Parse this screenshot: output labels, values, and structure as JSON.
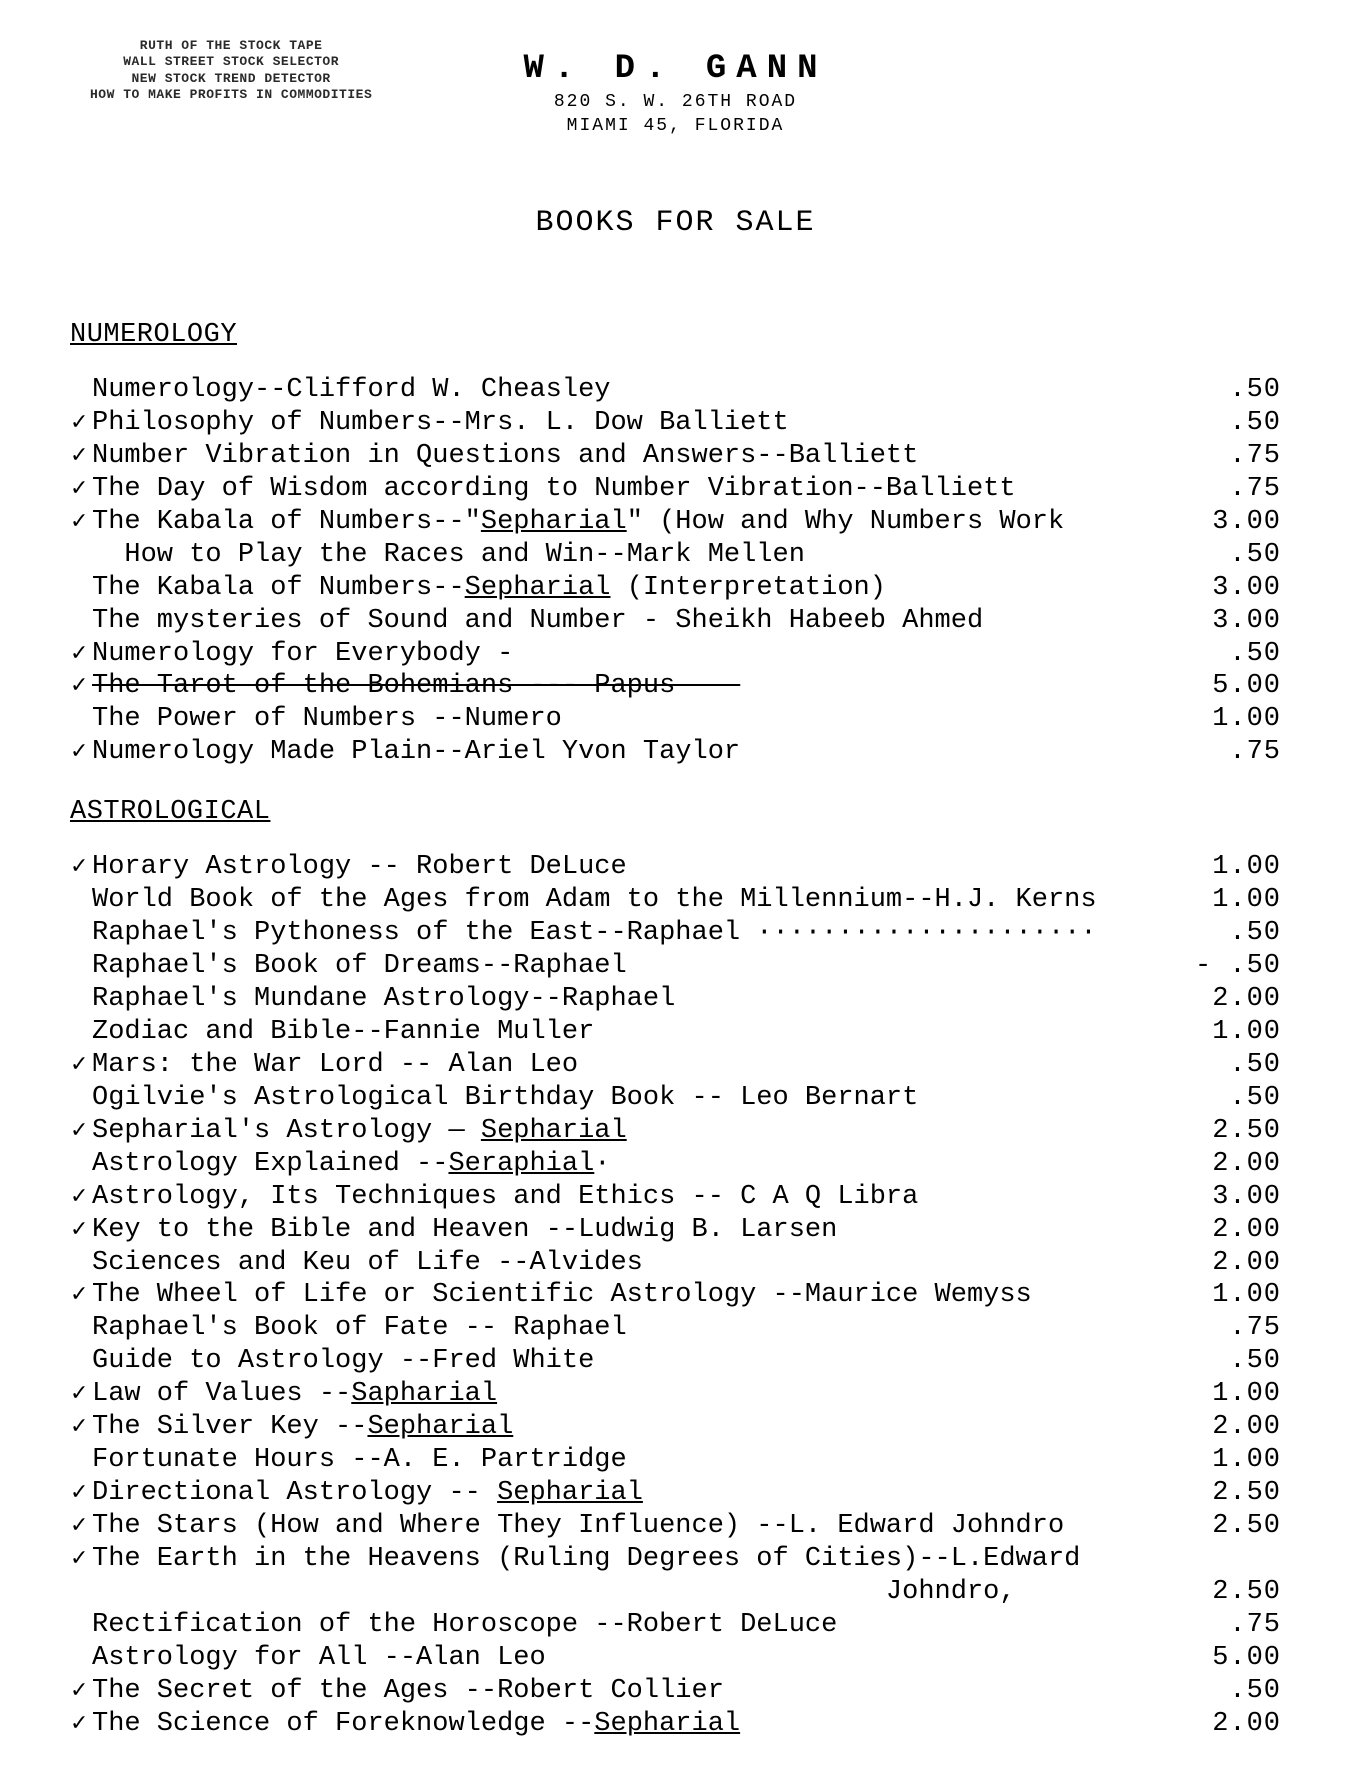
{
  "topLeft": {
    "l1": "RUTH OF THE STOCK TAPE",
    "l2": "WALL STREET STOCK SELECTOR",
    "l3": "NEW STOCK TREND DETECTOR",
    "l4": "HOW TO MAKE PROFITS IN COMMODITIES"
  },
  "header": {
    "name": "W. D. GANN",
    "addr1": "820 S. W. 26TH ROAD",
    "addr2": "MIAMI 45, FLORIDA"
  },
  "docTitle": "BOOKS FOR SALE",
  "sections": [
    {
      "heading": "NUMEROLOGY",
      "items": [
        {
          "chk": "",
          "title": "Numerology--Clifford W. Cheasley",
          "price": ".50"
        },
        {
          "chk": "✓",
          "title": "Philosophy of Numbers--Mrs. L. Dow Balliett",
          "price": ".50"
        },
        {
          "chk": "✓",
          "title": "Number Vibration in Questions and Answers--Balliett",
          "price": ".75"
        },
        {
          "chk": "✓",
          "title": "The Day of Wisdom according to Number Vibration--Balliett",
          "price": ".75"
        },
        {
          "chk": "✓",
          "titlePre": "The Kabala of Numbers--\"",
          "uline": "Sepharial",
          "titlePost": "\" (How and Why Numbers Work",
          "price": "3.00"
        },
        {
          "chk": "",
          "title": "How to Play the Races and Win--Mark Mellen",
          "price": ".50",
          "indent": true
        },
        {
          "chk": "",
          "titlePre": "The Kabala of Numbers--",
          "uline": "Sepharial",
          "titlePost": " (Interpretation)",
          "price": "3.00"
        },
        {
          "chk": "",
          "title": "The mysteries of Sound and Number - Sheikh Habeeb Ahmed",
          "price": "3.00"
        },
        {
          "chk": "✓",
          "title": "Numerology for Everybody -",
          "price": ".50"
        },
        {
          "chk": "✓",
          "strike": "The Tarot of the Bohemians --- Papus ———",
          "price": "5.00"
        },
        {
          "chk": "",
          "title": "The Power of Numbers --Numero",
          "price": "1.00"
        },
        {
          "chk": "✓",
          "title": "Numerology Made Plain--Ariel Yvon Taylor",
          "price": ".75"
        }
      ]
    },
    {
      "heading": "ASTROLOGICAL",
      "items": [
        {
          "chk": "✓",
          "title": "Horary Astrology -- Robert DeLuce",
          "price": "1.00"
        },
        {
          "chk": "",
          "title": "World Book of the Ages from Adam to the Millennium--H.J. Kerns",
          "price": "1.00"
        },
        {
          "chk": "",
          "title": "Raphael's Pythoness of the East--Raphael ·····················",
          "price": ".50"
        },
        {
          "chk": "",
          "title": "Raphael's Book of Dreams--Raphael",
          "price": "- .50"
        },
        {
          "chk": "",
          "title": "Raphael's Mundane Astrology--Raphael",
          "price": "2.00"
        },
        {
          "chk": "",
          "title": "Zodiac and Bible--Fannie Muller",
          "price": "1.00"
        },
        {
          "chk": "✓",
          "title": "Mars: the War Lord -- Alan Leo",
          "price": ".50"
        },
        {
          "chk": "",
          "title": "Ogilvie's Astrological Birthday Book -- Leo Bernart",
          "price": ".50"
        },
        {
          "chk": "✓",
          "titlePre": "Sepharial's Astrology — ",
          "uline": "Sepharial",
          "titlePost": "",
          "price": "2.50"
        },
        {
          "chk": "",
          "titlePre": "Astrology Explained --",
          "uline": "Seraphial",
          "titlePost": "·",
          "price": "2.00"
        },
        {
          "chk": "✓",
          "title": "Astrology, Its Techniques and Ethics -- C A Q Libra",
          "price": "3.00"
        },
        {
          "chk": "✓",
          "title": "Key to the Bible and Heaven --Ludwig B. Larsen",
          "price": "2.00"
        },
        {
          "chk": "",
          "title": "Sciences and Keu of Life --Alvides",
          "price": "2.00"
        },
        {
          "chk": "✓",
          "title": "The Wheel of Life or Scientific Astrology --Maurice Wemyss",
          "price": "1.00"
        },
        {
          "chk": "",
          "title": "Raphael's Book of Fate -- Raphael",
          "price": ".75"
        },
        {
          "chk": "",
          "title": "Guide to Astrology --Fred White",
          "price": ".50"
        },
        {
          "chk": "✓",
          "titlePre": "Law of Values --",
          "uline": "Sapharial",
          "titlePost": "",
          "price": "1.00"
        },
        {
          "chk": "✓",
          "titlePre": "The Silver Key --",
          "uline": "Sepharial",
          "titlePost": "",
          "price": "2.00"
        },
        {
          "chk": "",
          "title": "Fortunate Hours --A. E. Partridge",
          "price": "1.00"
        },
        {
          "chk": "✓",
          "titlePre": "Directional Astrology -- ",
          "uline": "Sepharial",
          "titlePost": "",
          "price": "2.50"
        },
        {
          "chk": "✓",
          "title": "The Stars (How and Where They Influence) --L. Edward Johndro",
          "price": "2.50"
        },
        {
          "chk": "✓",
          "title": "The Earth in the Heavens (Ruling Degrees of Cities)--L.Edward",
          "price": ""
        },
        {
          "chk": "",
          "title": "                                                 Johndro,",
          "price": "2.50"
        },
        {
          "chk": "",
          "title": "Rectification of the Horoscope --Robert DeLuce",
          "price": ".75"
        },
        {
          "chk": "",
          "title": "Astrology for All --Alan Leo",
          "price": "5.00"
        },
        {
          "chk": "✓",
          "title": "The Secret of the Ages --Robert Collier",
          "price": ".50"
        },
        {
          "chk": "✓",
          "titlePre": "The Science of Foreknowledge --",
          "uline": "Sepharial",
          "titlePost": "",
          "price": "2.00"
        }
      ]
    }
  ]
}
